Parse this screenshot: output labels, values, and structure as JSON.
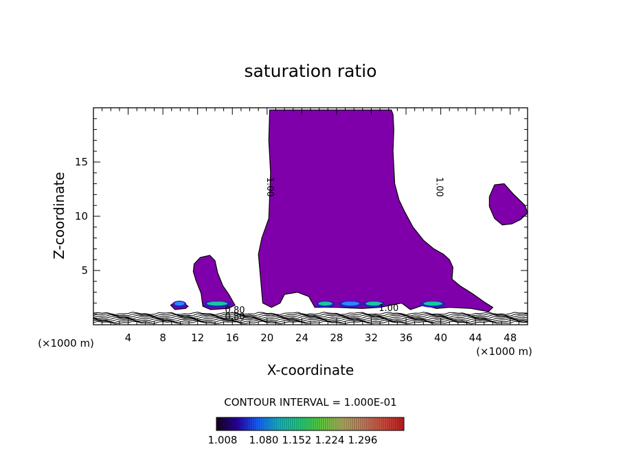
{
  "chart_data": {
    "type": "contour",
    "title": "saturation ratio",
    "xlabel": "X-coordinate",
    "ylabel": "Z-coordinate",
    "x_unit_left": "(×1000 m)",
    "x_unit_right": "(×1000 m)",
    "xlim": [
      0,
      50
    ],
    "ylim": [
      0,
      20
    ],
    "x_ticks": [
      4,
      8,
      12,
      16,
      20,
      24,
      28,
      32,
      36,
      40,
      44,
      48
    ],
    "y_ticks": [
      5,
      10,
      15
    ],
    "contour_labels": [
      {
        "text": "1.00",
        "x": 20.3,
        "y": 12.7,
        "rotate": 90
      },
      {
        "text": "1.00",
        "x": 39.8,
        "y": 12.7,
        "rotate": 90
      },
      {
        "text": "0.80",
        "x": 16.3,
        "y": 1.3,
        "rotate": 0
      },
      {
        "text": "0.80",
        "x": 16.3,
        "y": 0.7,
        "rotate": 0
      },
      {
        "text": "1.00",
        "x": 34.0,
        "y": 1.5,
        "rotate": 0
      }
    ],
    "regions": [
      {
        "name": "main-cloud",
        "fill": "#7f00aa",
        "points": [
          [
            20.3,
            19.8
          ],
          [
            34.3,
            19.8
          ],
          [
            34.5,
            19.4
          ],
          [
            34.6,
            18.0
          ],
          [
            34.5,
            16.0
          ],
          [
            34.7,
            13.0
          ],
          [
            35.2,
            11.5
          ],
          [
            35.8,
            10.5
          ],
          [
            36.8,
            9.0
          ],
          [
            38.0,
            7.8
          ],
          [
            39.2,
            7.0
          ],
          [
            40.3,
            6.5
          ],
          [
            41.0,
            6.0
          ],
          [
            41.4,
            5.3
          ],
          [
            41.3,
            4.2
          ],
          [
            42.2,
            3.6
          ],
          [
            43.6,
            2.9
          ],
          [
            45.0,
            2.1
          ],
          [
            46.0,
            1.6
          ],
          [
            45.5,
            1.2
          ],
          [
            43.5,
            1.5
          ],
          [
            41.0,
            1.6
          ],
          [
            39.5,
            1.5
          ],
          [
            38.0,
            1.8
          ],
          [
            36.5,
            1.4
          ],
          [
            35.5,
            2.0
          ],
          [
            33.0,
            1.6
          ],
          [
            31.0,
            1.5
          ],
          [
            28.0,
            1.6
          ],
          [
            25.5,
            1.6
          ],
          [
            24.8,
            2.6
          ],
          [
            23.5,
            3.0
          ],
          [
            22.0,
            2.8
          ],
          [
            21.5,
            2.0
          ],
          [
            20.5,
            1.6
          ],
          [
            19.5,
            2.0
          ],
          [
            19.0,
            6.5
          ],
          [
            19.4,
            8.0
          ],
          [
            20.2,
            9.8
          ],
          [
            20.4,
            14.0
          ],
          [
            20.2,
            17.0
          ]
        ]
      },
      {
        "name": "right-cloud",
        "fill": "#7f00aa",
        "points": [
          [
            45.6,
            11.8
          ],
          [
            46.2,
            12.9
          ],
          [
            47.3,
            13.0
          ],
          [
            48.3,
            12.1
          ],
          [
            49.7,
            11.0
          ],
          [
            50.0,
            10.3
          ],
          [
            49.2,
            9.7
          ],
          [
            48.2,
            9.3
          ],
          [
            47.1,
            9.2
          ],
          [
            46.2,
            9.8
          ],
          [
            45.6,
            10.9
          ]
        ]
      },
      {
        "name": "left-cloud",
        "fill": "#7f00aa",
        "points": [
          [
            11.6,
            5.6
          ],
          [
            12.3,
            6.2
          ],
          [
            13.4,
            6.4
          ],
          [
            14.0,
            5.9
          ],
          [
            14.3,
            4.8
          ],
          [
            14.9,
            3.6
          ],
          [
            15.6,
            2.8
          ],
          [
            16.3,
            1.8
          ],
          [
            15.5,
            1.5
          ],
          [
            13.5,
            1.4
          ],
          [
            12.6,
            1.7
          ],
          [
            12.4,
            2.9
          ],
          [
            11.8,
            4.1
          ],
          [
            11.5,
            4.9
          ]
        ]
      },
      {
        "name": "small-patch",
        "fill": "#7f00aa",
        "points": [
          [
            8.9,
            1.8
          ],
          [
            9.4,
            2.1
          ],
          [
            10.4,
            2.0
          ],
          [
            10.9,
            1.7
          ],
          [
            10.6,
            1.5
          ],
          [
            9.4,
            1.4
          ]
        ]
      }
    ],
    "highlights": [
      {
        "x0": 12.6,
        "x1": 15.9,
        "fill": "#14c8a0"
      },
      {
        "x0": 9.1,
        "x1": 10.7,
        "fill": "#2a88ff"
      },
      {
        "x0": 25.6,
        "x1": 27.8,
        "fill": "#14c8a0"
      },
      {
        "x0": 28.2,
        "x1": 31.0,
        "fill": "#2a88ff"
      },
      {
        "x0": 31.0,
        "x1": 33.6,
        "fill": "#14c8a0"
      },
      {
        "x0": 37.6,
        "x1": 40.6,
        "fill": "#14c8a0"
      }
    ],
    "surface_lines": 8,
    "colorbar": {
      "title": "CONTOUR INTERVAL = 1.000E-01",
      "labels": [
        "1.008",
        "1.080",
        "1.152",
        "1.224",
        "1.296"
      ],
      "gradient": [
        "#1a0020",
        "#2a00aa",
        "#1a66ff",
        "#14b8c8",
        "#20d080",
        "#60d040",
        "#b0b060",
        "#c88060",
        "#d05040",
        "#c02020"
      ]
    }
  }
}
